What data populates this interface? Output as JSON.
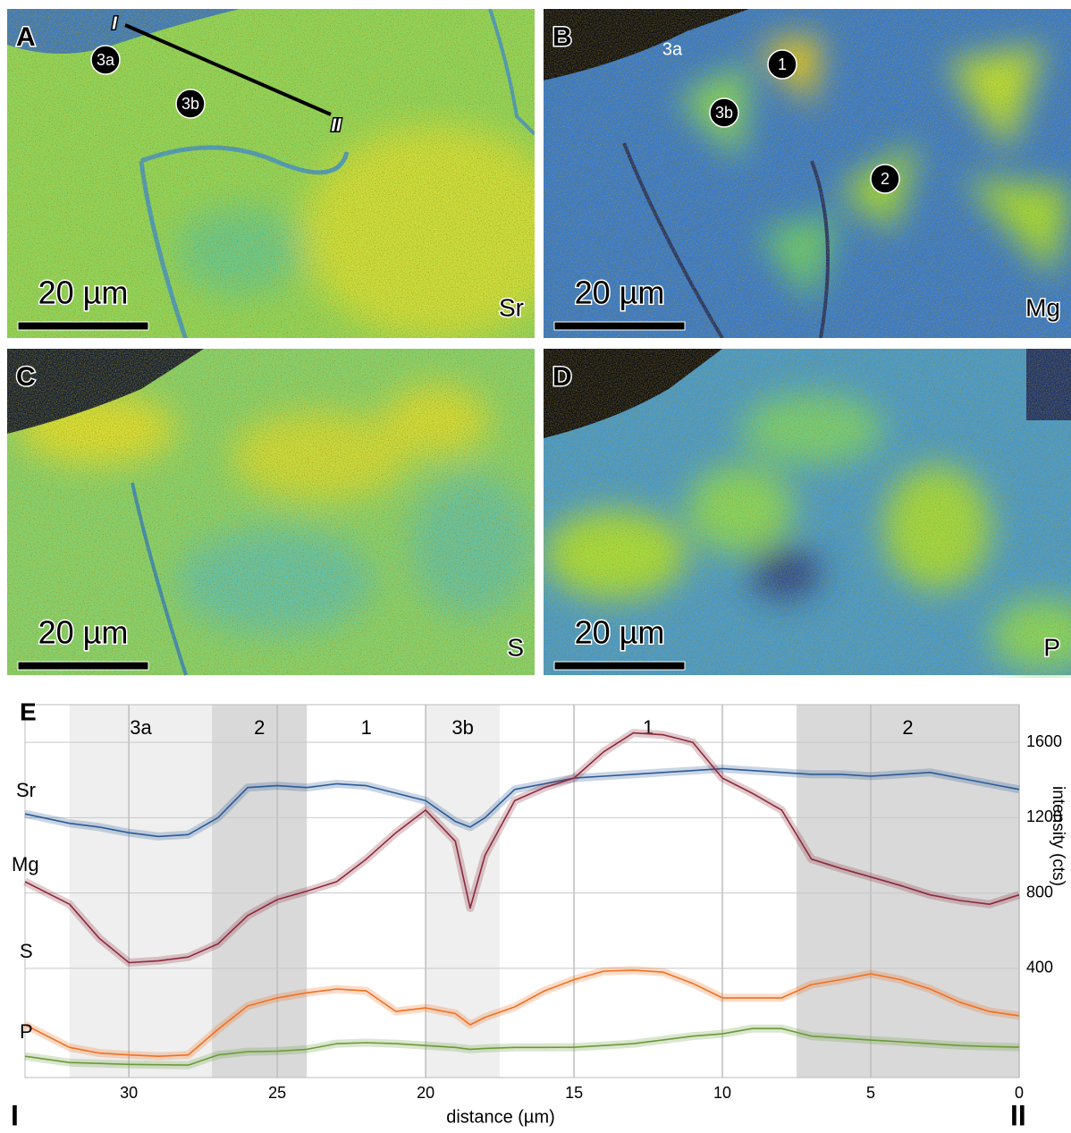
{
  "panels": [
    {
      "letter": "A",
      "element": "Sr",
      "scale_bar": "20 µm",
      "markers": [
        "I",
        "3a",
        "3b",
        "II"
      ]
    },
    {
      "letter": "B",
      "element": "Mg",
      "scale_bar": "20 µm",
      "markers": [
        "3a",
        "3b",
        "1",
        "2"
      ]
    },
    {
      "letter": "C",
      "element": "S",
      "scale_bar": "20 µm",
      "markers": []
    },
    {
      "letter": "D",
      "element": "P",
      "scale_bar": "20 µm",
      "markers": []
    }
  ],
  "chart_data": {
    "type": "line",
    "panel_label": "E",
    "x_label": "distance (µm)",
    "y_label": "intensity (cts)",
    "start_label": "I",
    "end_label": "II",
    "x": [
      33.5,
      32,
      31,
      30,
      29,
      28,
      27,
      26,
      25,
      24,
      23,
      22,
      21,
      20,
      19,
      18.5,
      18,
      17,
      16,
      15,
      14,
      13,
      12,
      11,
      10,
      9,
      8,
      7,
      6,
      5,
      4,
      3,
      2,
      1,
      0
    ],
    "series": [
      {
        "name": "Sr",
        "color": "#2c5a96",
        "values": [
          1220,
          1170,
          1150,
          1120,
          1100,
          1110,
          1200,
          1360,
          1370,
          1360,
          1380,
          1370,
          1330,
          1290,
          1180,
          1150,
          1200,
          1350,
          1380,
          1410,
          1420,
          1430,
          1440,
          1450,
          1460,
          1450,
          1440,
          1430,
          1430,
          1420,
          1430,
          1440,
          1410,
          1380,
          1350
        ]
      },
      {
        "name": "Mg",
        "color": "#8c2a3c",
        "values": [
          860,
          740,
          560,
          430,
          440,
          460,
          530,
          680,
          765,
          810,
          860,
          980,
          1120,
          1240,
          1075,
          720,
          1000,
          1290,
          1360,
          1410,
          1550,
          1650,
          1640,
          1600,
          1410,
          1330,
          1240,
          980,
          930,
          885,
          840,
          790,
          760,
          740,
          790
        ]
      },
      {
        "name": "S",
        "color": "#f07020",
        "values": [
          100,
          -20,
          -50,
          -60,
          -67,
          -60,
          76,
          200,
          243,
          270,
          290,
          280,
          171,
          190,
          160,
          100,
          140,
          195,
          280,
          340,
          385,
          390,
          380,
          320,
          243,
          243,
          243,
          314,
          340,
          371,
          340,
          290,
          220,
          171,
          148
        ]
      },
      {
        "name": "P",
        "color": "#6a9a3a",
        "values": [
          -67,
          -100,
          -105,
          -110,
          -112,
          -114,
          -60,
          -43,
          -40,
          -30,
          0,
          5,
          0,
          -10,
          -20,
          -30,
          -25,
          -20,
          -20,
          -19,
          -10,
          0,
          20,
          40,
          52,
          80,
          80,
          40,
          30,
          19,
          10,
          0,
          -10,
          -15,
          -19
        ]
      }
    ],
    "regions": [
      {
        "label": "3a",
        "start": 32,
        "end": 27.2,
        "shade": "#efefef"
      },
      {
        "label": "2",
        "start": 27.2,
        "end": 24,
        "shade": "#d9d9d9"
      },
      {
        "label": "1",
        "start": 24,
        "end": 20,
        "shade": "#ffffff"
      },
      {
        "label": "3b",
        "start": 20,
        "end": 17.5,
        "shade": "#efefef"
      },
      {
        "label": "1",
        "start": 17.5,
        "end": 7.5,
        "shade": "#ffffff"
      },
      {
        "label": "2",
        "start": 7.5,
        "end": 0,
        "shade": "#d9d9d9"
      }
    ],
    "xlim": [
      33.5,
      0
    ],
    "ylim": [
      -180,
      1800
    ],
    "xticks": [
      30,
      25,
      20,
      15,
      10,
      5,
      0
    ],
    "yticks": [
      400,
      800,
      1200,
      1600
    ],
    "grid": true
  }
}
